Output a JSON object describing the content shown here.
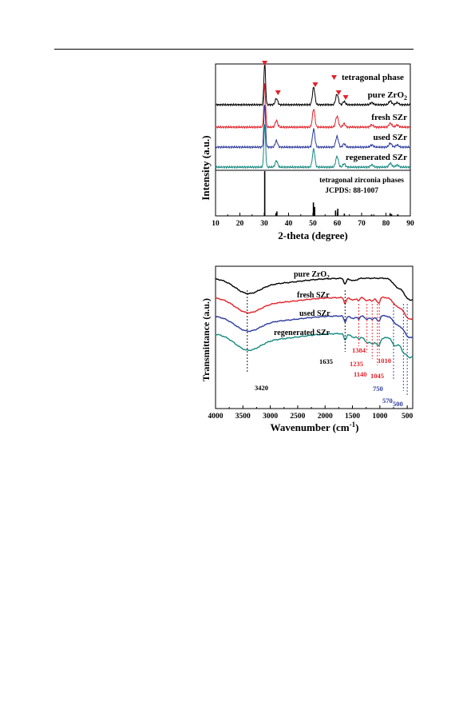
{
  "chart_data": [
    {
      "type": "line",
      "title": "",
      "xlabel": "2-theta (degree)",
      "ylabel": "Intensity (a.u.)",
      "xlim": [
        10,
        90
      ],
      "xticks": [
        "10",
        "20",
        "30",
        "40",
        "50",
        "60",
        "70",
        "80",
        "90"
      ],
      "colors": {
        "pure": "#000000",
        "fresh": "#e2222a",
        "used": "#2b3a9e",
        "regen": "#148a80",
        "marker": "#e2222a"
      },
      "legend": {
        "marker_label": "tetragonal phase",
        "position": "top-right"
      },
      "series": [
        {
          "name": "pure ZrO2",
          "label_main": "pure ZrO",
          "label_sub": "2"
        },
        {
          "name": "fresh SZr",
          "label_main": "fresh SZr",
          "label_sub": ""
        },
        {
          "name": "used SZr",
          "label_main": "used SZr",
          "label_sub": ""
        },
        {
          "name": "regenerated SZr",
          "label_main": "regenerated SZr",
          "label_sub": ""
        }
      ],
      "peaks": [
        {
          "x": 30.2,
          "h": 1.0,
          "w": 0.35
        },
        {
          "x": 35.0,
          "h": 0.15,
          "w": 0.5
        },
        {
          "x": 50.3,
          "h": 0.42,
          "w": 0.5
        },
        {
          "x": 59.9,
          "h": 0.25,
          "w": 0.55
        },
        {
          "x": 62.8,
          "h": 0.08,
          "w": 0.5
        },
        {
          "x": 74.2,
          "h": 0.05,
          "w": 0.6
        },
        {
          "x": 81.8,
          "h": 0.09,
          "w": 0.6
        },
        {
          "x": 84.6,
          "h": 0.05,
          "w": 0.6
        }
      ],
      "tetragonal_markers_x": [
        30.2,
        35.0,
        50.3,
        59.9,
        62.8
      ],
      "reference": {
        "line1": "tetragonal zirconia phases",
        "line2": "JCPDS: 88-1007",
        "sticks": [
          {
            "x": 30.2,
            "h": 1.0
          },
          {
            "x": 34.8,
            "h": 0.06
          },
          {
            "x": 35.2,
            "h": 0.1
          },
          {
            "x": 50.2,
            "h": 0.3
          },
          {
            "x": 50.7,
            "h": 0.2
          },
          {
            "x": 59.3,
            "h": 0.12
          },
          {
            "x": 60.2,
            "h": 0.16
          },
          {
            "x": 62.9,
            "h": 0.05
          },
          {
            "x": 74.1,
            "h": 0.03
          },
          {
            "x": 81.7,
            "h": 0.06
          },
          {
            "x": 82.3,
            "h": 0.04
          },
          {
            "x": 84.8,
            "h": 0.03
          }
        ]
      }
    },
    {
      "type": "line",
      "title": "",
      "xlabel_main": "Wavenumber (cm",
      "xlabel_sup": "-1",
      "xlabel_close": ")",
      "ylabel": "Transmittance (a.u.)",
      "xlim": [
        4000,
        400
      ],
      "xticks": [
        "4000",
        "3500",
        "3000",
        "2500",
        "2000",
        "1500",
        "1000",
        "500"
      ],
      "colors": {
        "pure": "#000000",
        "fresh": "#e2222a",
        "used": "#2b3a9e",
        "regen": "#148a80",
        "red_ann": "#e2222a",
        "blue_ann": "#2b3a9e"
      },
      "series": [
        {
          "name": "pure ZrO2",
          "label_main": "pure ZrO",
          "label_sub": "2"
        },
        {
          "name": "fresh SZr",
          "label_main": "fresh SZr",
          "label_sub": ""
        },
        {
          "name": "used SZr",
          "label_main": "used SZr",
          "label_sub": ""
        },
        {
          "name": "regenerated SZr",
          "label_main": "regenerated SZr",
          "label_sub": ""
        }
      ],
      "annotations": [
        {
          "text": "3420",
          "x": 3420,
          "color": "black"
        },
        {
          "text": "1635",
          "x": 1635,
          "color": "black"
        },
        {
          "text": "1384",
          "x": 1384,
          "color": "red"
        },
        {
          "text": "1235",
          "x": 1235,
          "color": "red"
        },
        {
          "text": "1140",
          "x": 1140,
          "color": "red"
        },
        {
          "text": "1045",
          "x": 1045,
          "color": "red"
        },
        {
          "text": "1010",
          "x": 1010,
          "color": "red"
        },
        {
          "text": "750",
          "x": 750,
          "color": "blue"
        },
        {
          "text": "570",
          "x": 570,
          "color": "blue"
        },
        {
          "text": "500",
          "x": 500,
          "color": "blue"
        }
      ]
    }
  ]
}
